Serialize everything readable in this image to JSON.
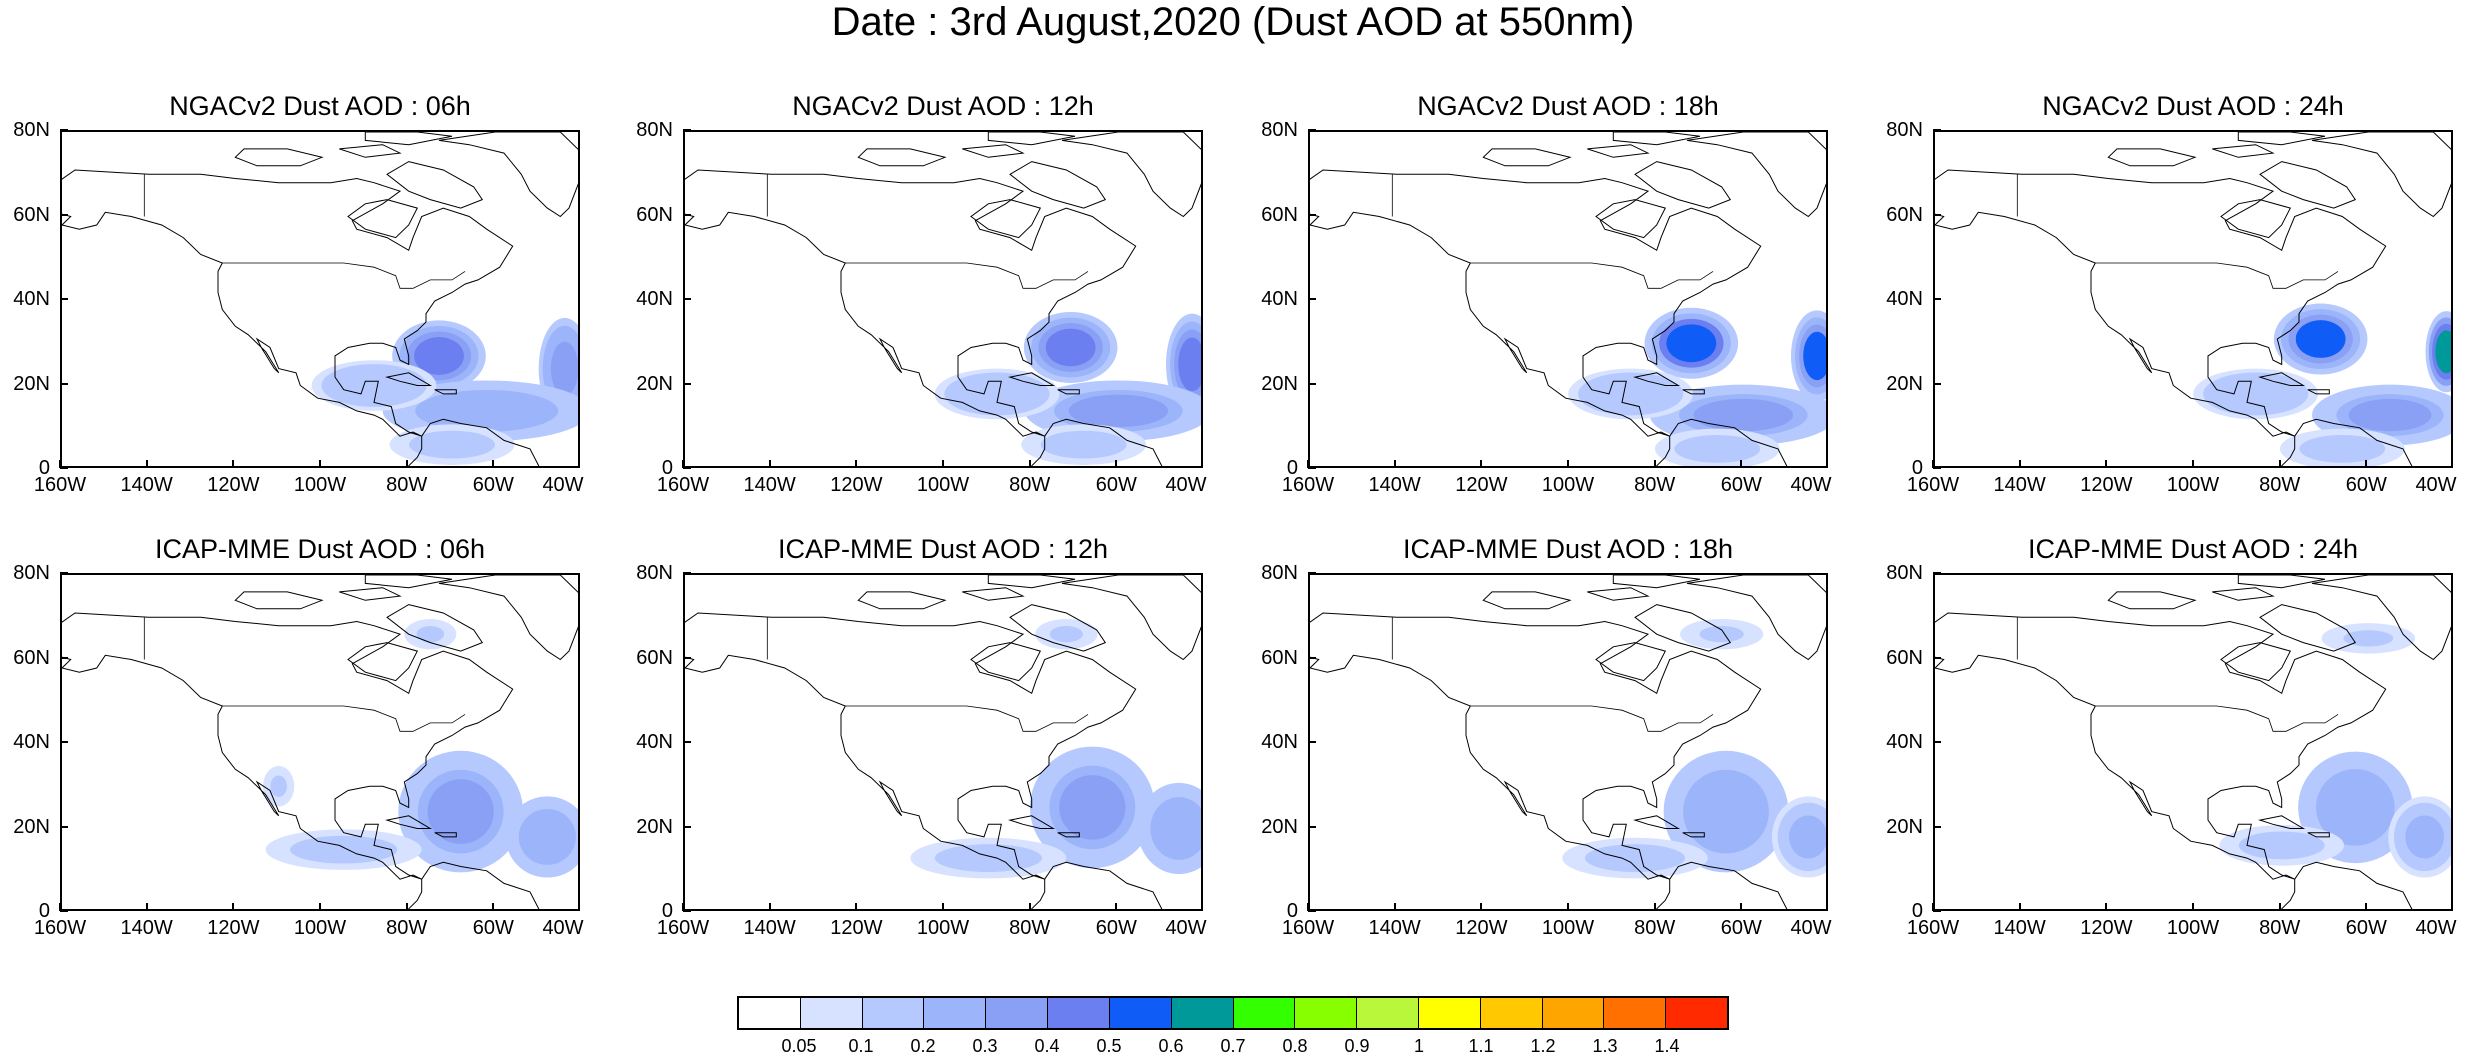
{
  "title": "Date : 3rd August,2020 (Dust AOD at 550nm)",
  "axes": {
    "lat_ticks": [
      "80N",
      "60N",
      "40N",
      "20N",
      "0"
    ],
    "lon_ticks": [
      "160W",
      "140W",
      "120W",
      "100W",
      "80W",
      "60W",
      "40W"
    ],
    "lat_range": [
      0,
      80
    ],
    "lon_range": [
      -160,
      -40
    ]
  },
  "panels": [
    {
      "title": "NGACv2 Dust AOD : 06h",
      "model": "NGACv2",
      "hour": 6,
      "blobs": [
        {
          "lon": -73,
          "lat": 27,
          "rlon": 9,
          "rlat": 7,
          "aod": 0.45
        },
        {
          "lon": -44,
          "lat": 24,
          "rlon": 5,
          "rlat": 10,
          "aod": 0.38
        },
        {
          "lon": -62,
          "lat": 14,
          "rlon": 20,
          "rlat": 6,
          "aod": 0.28
        },
        {
          "lon": -88,
          "lat": 20,
          "rlon": 12,
          "rlat": 5,
          "aod": 0.15
        },
        {
          "lon": -70,
          "lat": 6,
          "rlon": 12,
          "rlat": 4,
          "aod": 0.12
        }
      ]
    },
    {
      "title": "NGACv2 Dust AOD : 12h",
      "model": "NGACv2",
      "hour": 12,
      "blobs": [
        {
          "lon": -71,
          "lat": 29,
          "rlon": 9,
          "rlat": 7,
          "aod": 0.48
        },
        {
          "lon": -43,
          "lat": 25,
          "rlon": 5,
          "rlat": 10,
          "aod": 0.42
        },
        {
          "lon": -60,
          "lat": 14,
          "rlon": 18,
          "rlat": 6,
          "aod": 0.3
        },
        {
          "lon": -88,
          "lat": 18,
          "rlon": 12,
          "rlat": 5,
          "aod": 0.15
        },
        {
          "lon": -68,
          "lat": 6,
          "rlon": 12,
          "rlat": 4,
          "aod": 0.12
        }
      ]
    },
    {
      "title": "NGACv2 Dust AOD : 18h",
      "model": "NGACv2",
      "hour": 18,
      "blobs": [
        {
          "lon": -72,
          "lat": 30,
          "rlon": 9,
          "rlat": 7,
          "aod": 0.52
        },
        {
          "lon": -43,
          "lat": 27,
          "rlon": 5,
          "rlat": 9,
          "aod": 0.5
        },
        {
          "lon": -60,
          "lat": 13,
          "rlon": 18,
          "rlat": 6,
          "aod": 0.3
        },
        {
          "lon": -86,
          "lat": 18,
          "rlon": 12,
          "rlat": 5,
          "aod": 0.15
        },
        {
          "lon": -66,
          "lat": 5,
          "rlon": 12,
          "rlat": 4,
          "aod": 0.12
        }
      ]
    },
    {
      "title": "NGACv2 Dust AOD : 24h",
      "model": "NGACv2",
      "hour": 24,
      "blobs": [
        {
          "lon": -71,
          "lat": 31,
          "rlon": 9,
          "rlat": 7,
          "aod": 0.5
        },
        {
          "lon": -42,
          "lat": 28,
          "rlon": 4,
          "rlat": 8,
          "aod": 0.6
        },
        {
          "lon": -55,
          "lat": 13,
          "rlon": 15,
          "rlat": 6,
          "aod": 0.3
        },
        {
          "lon": -86,
          "lat": 18,
          "rlon": 12,
          "rlat": 5,
          "aod": 0.15
        },
        {
          "lon": -66,
          "lat": 5,
          "rlon": 12,
          "rlat": 4,
          "aod": 0.12
        }
      ]
    },
    {
      "title": "ICAP-MME Dust AOD : 06h",
      "model": "ICAP-MME",
      "hour": 6,
      "blobs": [
        {
          "lon": -68,
          "lat": 24,
          "rlon": 12,
          "rlat": 12,
          "aod": 0.3
        },
        {
          "lon": -48,
          "lat": 18,
          "rlon": 8,
          "rlat": 8,
          "aod": 0.28
        },
        {
          "lon": -95,
          "lat": 15,
          "rlon": 15,
          "rlat": 4,
          "aod": 0.12
        },
        {
          "lon": -110,
          "lat": 30,
          "rlon": 3,
          "rlat": 4,
          "aod": 0.1
        },
        {
          "lon": -75,
          "lat": 66,
          "rlon": 5,
          "rlat": 3,
          "aod": 0.1
        }
      ]
    },
    {
      "title": "ICAP-MME Dust AOD : 12h",
      "model": "ICAP-MME",
      "hour": 12,
      "blobs": [
        {
          "lon": -66,
          "lat": 25,
          "rlon": 12,
          "rlat": 12,
          "aod": 0.3
        },
        {
          "lon": -46,
          "lat": 20,
          "rlon": 8,
          "rlat": 9,
          "aod": 0.25
        },
        {
          "lon": -90,
          "lat": 13,
          "rlon": 15,
          "rlat": 4,
          "aod": 0.12
        },
        {
          "lon": -72,
          "lat": 66,
          "rlon": 6,
          "rlat": 3,
          "aod": 0.1
        }
      ]
    },
    {
      "title": "ICAP-MME Dust AOD : 18h",
      "model": "ICAP-MME",
      "hour": 18,
      "blobs": [
        {
          "lon": -64,
          "lat": 24,
          "rlon": 12,
          "rlat": 12,
          "aod": 0.28
        },
        {
          "lon": -45,
          "lat": 18,
          "rlon": 7,
          "rlat": 8,
          "aod": 0.22
        },
        {
          "lon": -85,
          "lat": 13,
          "rlon": 14,
          "rlat": 4,
          "aod": 0.12
        },
        {
          "lon": -65,
          "lat": 66,
          "rlon": 8,
          "rlat": 3,
          "aod": 0.1
        }
      ]
    },
    {
      "title": "ICAP-MME Dust AOD : 24h",
      "model": "ICAP-MME",
      "hour": 24,
      "blobs": [
        {
          "lon": -63,
          "lat": 25,
          "rlon": 11,
          "rlat": 11,
          "aod": 0.28
        },
        {
          "lon": -47,
          "lat": 18,
          "rlon": 7,
          "rlat": 8,
          "aod": 0.22
        },
        {
          "lon": -80,
          "lat": 16,
          "rlon": 12,
          "rlat": 4,
          "aod": 0.12
        },
        {
          "lon": -60,
          "lat": 65,
          "rlon": 9,
          "rlat": 3,
          "aod": 0.1
        }
      ]
    }
  ],
  "colorbar": {
    "labels": [
      "0.05",
      "0.1",
      "0.2",
      "0.3",
      "0.4",
      "0.5",
      "0.6",
      "0.7",
      "0.8",
      "0.9",
      "1",
      "1.1",
      "1.2",
      "1.3",
      "1.4"
    ],
    "colors": [
      "#ffffff",
      "#d6e2ff",
      "#b5c9ff",
      "#9bb4fa",
      "#8aa0f5",
      "#6b7ff0",
      "#0f5cf7",
      "#009999",
      "#33ff00",
      "#88ff00",
      "#b8f73a",
      "#ffff00",
      "#ffc800",
      "#ffa500",
      "#ff7000",
      "#ff2a00"
    ]
  }
}
